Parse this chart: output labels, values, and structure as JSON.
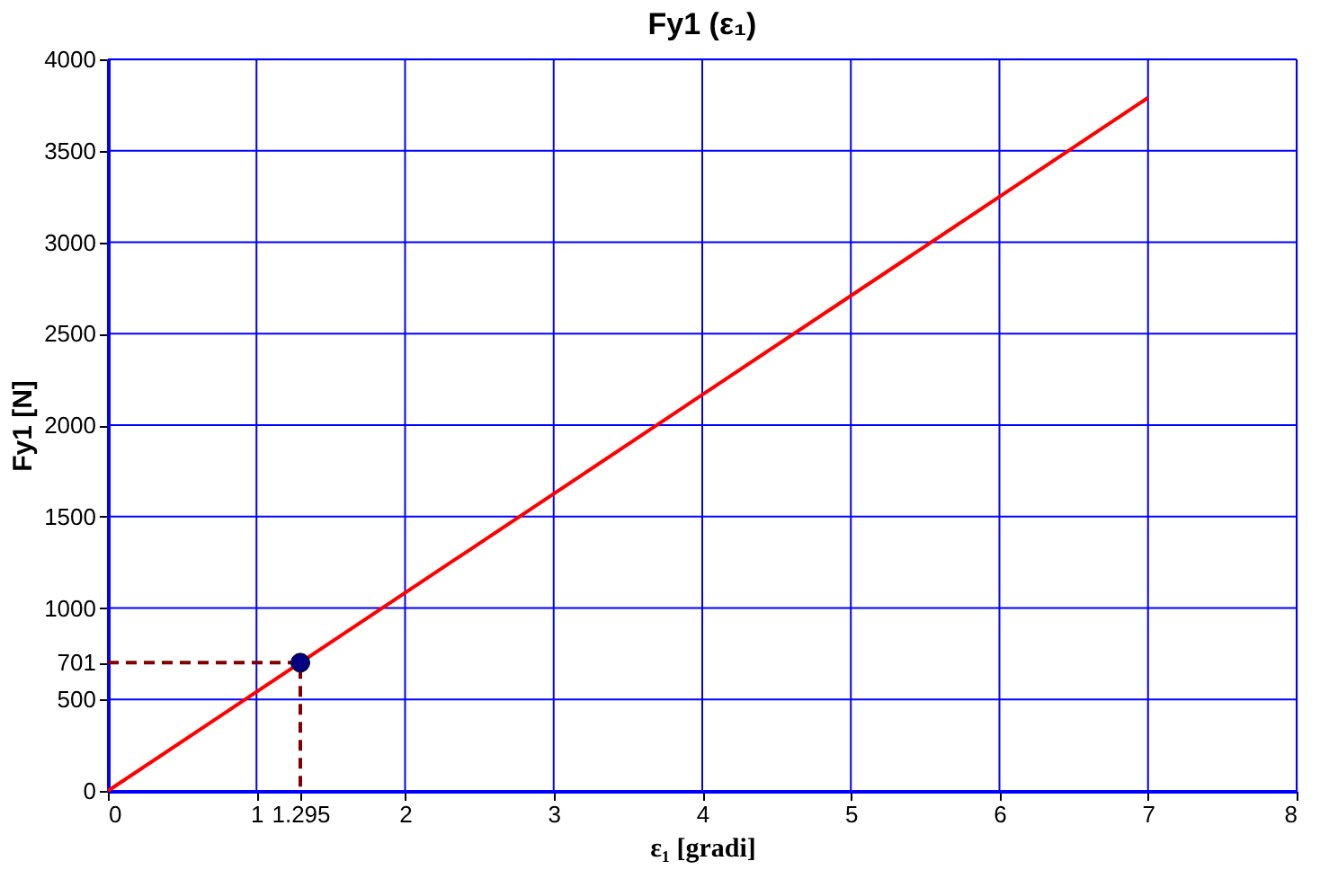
{
  "chart_data": {
    "type": "line",
    "title": "Fy1 (ε₁)",
    "xlabel": "ε₁ [gradi]",
    "ylabel": "Fy1 [N]",
    "series": [
      {
        "color": "#ff0000",
        "x": [
          0,
          7
        ],
        "values": [
          0,
          3790
        ]
      },
      {
        "type": "line",
        "color": "#800000",
        "line_style": "dashed",
        "x": [
          0,
          1.295,
          1.295
        ],
        "values": [
          701,
          701,
          0
        ]
      },
      {
        "type": "scatter",
        "color": "#000080",
        "marker": "circle",
        "x": [
          1.295
        ],
        "values": [
          701
        ]
      }
    ],
    "xlim": [
      0,
      8
    ],
    "xticks": [
      0,
      1,
      {
        "value": 1.295,
        "label": "1.295"
      },
      2,
      3,
      4,
      5,
      6,
      7,
      8
    ],
    "ylim": [
      0,
      4000
    ],
    "yticks": [
      0,
      500,
      {
        "value": 701,
        "label": "701"
      },
      1000,
      1500,
      2000,
      2500,
      3000,
      3500,
      4000
    ],
    "grid": true
  }
}
